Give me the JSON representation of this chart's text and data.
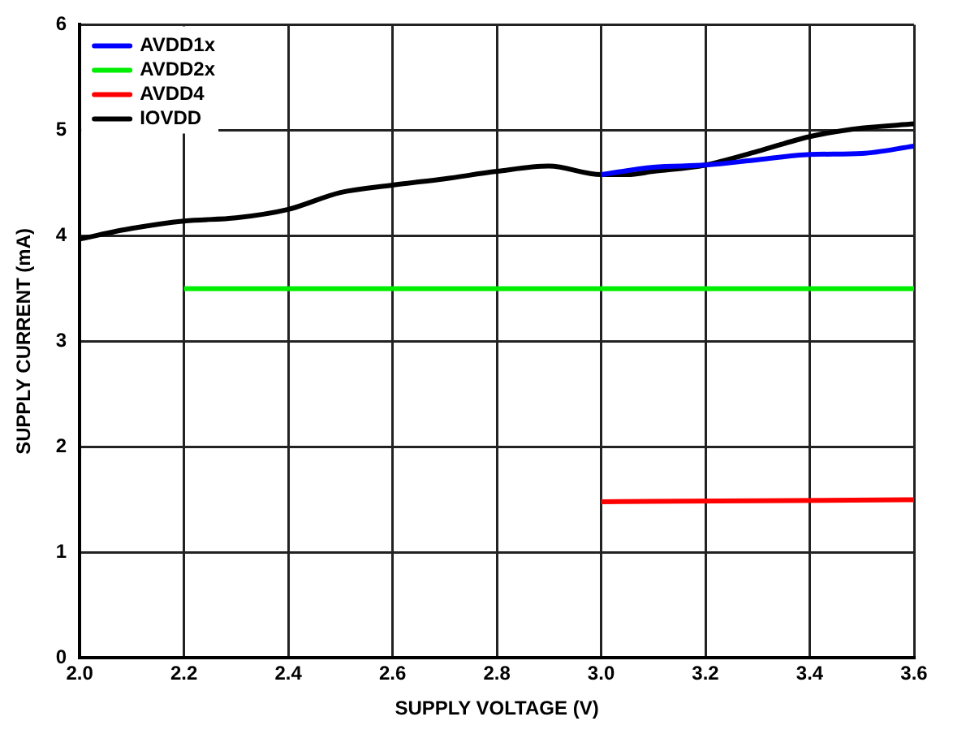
{
  "chart_data": {
    "type": "line",
    "xlabel": "SUPPLY VOLTAGE (V)",
    "ylabel": "SUPPLY CURRENT (mA)",
    "xlim": [
      2.0,
      3.6
    ],
    "xticks": [
      {
        "value": 2.0,
        "label": "2.0"
      },
      {
        "value": 2.2,
        "label": "2.2"
      },
      {
        "value": 2.4,
        "label": "2.4"
      },
      {
        "value": 2.6,
        "label": "2.6"
      },
      {
        "value": 2.8,
        "label": "2.8"
      },
      {
        "value": 3.0,
        "label": "3.0"
      },
      {
        "value": 3.2,
        "label": "3.2"
      },
      {
        "value": 3.4,
        "label": "3.4"
      },
      {
        "value": 3.6,
        "label": "3.6"
      }
    ],
    "ylim": [
      0,
      6
    ],
    "yticks": [
      0,
      1,
      2,
      3,
      4,
      5,
      6
    ],
    "grid": true,
    "legend": "top left",
    "marker": "none",
    "line_style": "solid",
    "series": [
      {
        "name": "AVDD1x",
        "color": "#0000ff",
        "x": [
          3.0,
          3.1,
          3.2,
          3.3,
          3.4,
          3.5,
          3.6
        ],
        "values": [
          4.58,
          4.65,
          4.67,
          4.72,
          4.77,
          4.78,
          4.85
        ]
      },
      {
        "name": "AVDD2x",
        "color": "#00ee00",
        "x": [
          2.2,
          3.6
        ],
        "values": [
          3.5,
          3.5
        ]
      },
      {
        "name": "AVDD4",
        "color": "#ff0000",
        "x": [
          3.0,
          3.3,
          3.6
        ],
        "values": [
          1.48,
          1.49,
          1.5
        ]
      },
      {
        "name": "IOVDD",
        "color": "#000000",
        "x": [
          2.0,
          2.1,
          2.2,
          2.3,
          2.4,
          2.5,
          2.6,
          2.7,
          2.8,
          2.9,
          3.0,
          3.05,
          3.1,
          3.2,
          3.3,
          3.4,
          3.5,
          3.6
        ],
        "values": [
          3.97,
          4.07,
          4.14,
          4.17,
          4.25,
          4.41,
          4.48,
          4.54,
          4.61,
          4.66,
          4.58,
          4.58,
          4.61,
          4.67,
          4.8,
          4.94,
          5.02,
          5.06
        ]
      }
    ]
  }
}
